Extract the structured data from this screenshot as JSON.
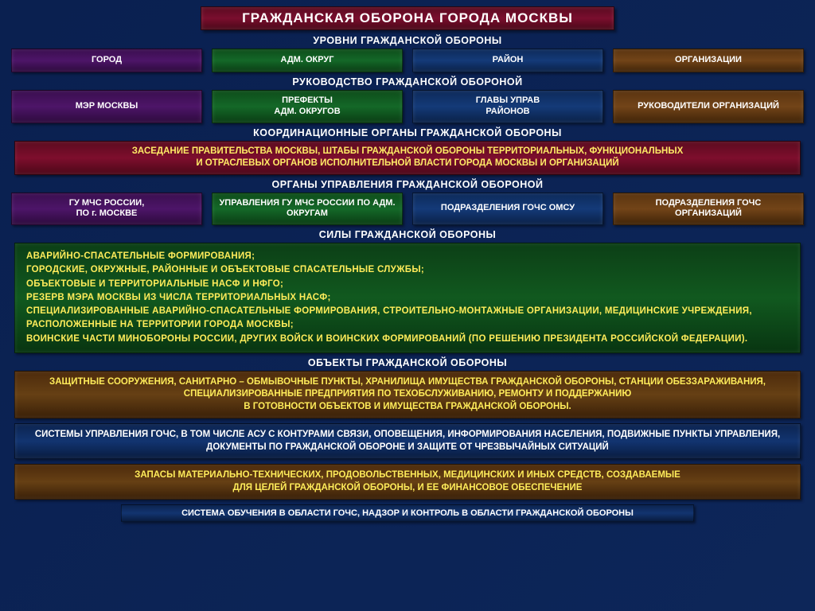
{
  "title": "ГРАЖДАНСКАЯ  ОБОРОНА  ГОРОДА  МОСКВЫ",
  "sections": {
    "levels": {
      "label": "УРОВНИ ГРАЖДАНСКОЙ ОБОРОНЫ",
      "cells": [
        "ГОРОД",
        "АДМ. ОКРУГ",
        "РАЙОН",
        "ОРГАНИЗАЦИИ"
      ]
    },
    "leadership": {
      "label": "РУКОВОДСТВО ГРАЖДАНСКОЙ ОБОРОНОЙ",
      "cells": [
        "МЭР МОСКВЫ",
        "ПРЕФЕКТЫ\nАДМ. ОКРУГОВ",
        "ГЛАВЫ УПРАВ\nРАЙОНОВ",
        "РУКОВОДИТЕЛИ ОРГАНИЗАЦИЙ"
      ]
    },
    "coord": {
      "label": "КООРДИНАЦИОННЫЕ  ОРГАНЫ  ГРАЖДАНСКОЙ  ОБОРОНЫ",
      "text": "ЗАСЕДАНИЕ ПРАВИТЕЛЬСТВА МОСКВЫ, ШТАБЫ ГРАЖДАНСКОЙ ОБОРОНЫ ТЕРРИТОРИАЛЬНЫХ, ФУНКЦИОНАЛЬНЫХ\nИ ОТРАСЛЕВЫХ ОРГАНОВ  ИСПОЛНИТЕЛЬНОЙ  ВЛАСТИ  ГОРОДА МОСКВЫ  И  ОРГАНИЗАЦИЙ"
    },
    "mgmt": {
      "label": "ОРГАНЫ УПРАВЛЕНИЯ ГРАЖДАНСКОЙ ОБОРОНОЙ",
      "cells": [
        "ГУ МЧС РОССИИ,\nПО г. МОСКВЕ",
        "УПРАВЛЕНИЯ ГУ  МЧС РОССИИ ПО АДМ. ОКРУГАМ",
        "ПОДРАЗДЕЛЕНИЯ ГОЧС ОМСУ",
        "ПОДРАЗДЕЛЕНИЯ ГОЧС\nОРГАНИЗАЦИЙ"
      ]
    },
    "forces": {
      "label": "СИЛЫ ГРАЖДАНСКОЙ ОБОРОНЫ",
      "text": "АВАРИЙНО-СПАСАТЕЛЬНЫЕ ФОРМИРОВАНИЯ;\nГОРОДСКИЕ, ОКРУЖНЫЕ, РАЙОННЫЕ И ОБЪЕКТОВЫЕ СПАСАТЕЛЬНЫЕ СЛУЖБЫ;\nОБЪЕКТОВЫЕ И ТЕРРИТОРИАЛЬНЫЕ  НАСФ И НФГО;\nРЕЗЕРВ МЭРА МОСКВЫ  ИЗ  ЧИСЛА ТЕРРИТОРИАЛЬНЫХ НАСФ;\n     СПЕЦИАЛИЗИРОВАННЫЕ  АВАРИЙНО-СПАСАТЕЛЬНЫЕ  ФОРМИРОВАНИЯ,  СТРОИТЕЛЬНО-МОНТАЖНЫЕ  ОРГАНИЗАЦИИ, МЕДИЦИНСКИЕ  УЧРЕЖДЕНИЯ,  РАСПОЛОЖЕННЫЕ  НА  ТЕРРИТОРИИ  ГОРОДА МОСКВЫ;\n     ВОИНСКИЕ  ЧАСТИ  МИНОБОРОНЫ РОССИИ,  ДРУГИХ  ВОЙСК  И  ВОИНСКИХ ФОРМИРОВАНИЙ  (ПО РЕШЕНИЮ ПРЕЗИДЕНТА РОССИЙСКОЙ ФЕДЕРАЦИИ)."
    },
    "objects": {
      "label": "ОБЪЕКТЫ ГРАЖДАНСКОЙ ОБОРОНЫ",
      "text": "ЗАЩИТНЫЕ СООРУЖЕНИЯ, САНИТАРНО – ОБМЫВОЧНЫЕ ПУНКТЫ, ХРАНИЛИЩА ИМУЩЕСТВА ГРАЖДАНСКОЙ ОБОРОНЫ, СТАНЦИИ ОБЕЗЗАРАЖИВАНИЯ, СПЕЦИАЛИЗИРОВАННЫЕ  ПРЕДПРИЯТИЯ  ПО ТЕХОБСЛУЖИВАНИЮ, РЕМОНТУ  И  ПОДДЕРЖАНИЮ\nВ ГОТОВНОСТИ ОБЪЕКТОВ И ИМУЩЕСТВА ГРАЖДАНСКОЙ ОБОРОНЫ."
    },
    "systems": {
      "text": "СИСТЕМЫ УПРАВЛЕНИЯ ГОЧС,  В ТОМ ЧИСЛЕ АСУ С КОНТУРАМИ СВЯЗИ,  ОПОВЕЩЕНИЯ,  ИНФОРМИРОВАНИЯ  НАСЕЛЕНИЯ, ПОДВИЖНЫЕ ПУНКТЫ  УПРАВЛЕНИЯ,  ДОКУМЕНТЫ  ПО ГРАЖДАНСКОЙ ОБОРОНЕ И ЗАЩИТЕ ОТ ЧРЕЗВЫЧАЙНЫХ СИТУАЦИЙ"
    },
    "reserves": {
      "text": "ЗАПАСЫ МАТЕРИАЛЬНО-ТЕХНИЧЕСКИХ, ПРОДОВОЛЬСТВЕННЫХ, МЕДИЦИНСКИХ И ИНЫХ СРЕДСТВ, СОЗДАВАЕМЫЕ\nДЛЯ ЦЕЛЕЙ ГРАЖДАНСКОЙ ОБОРОНЫ,  И  ЕЕ  ФИНАНСОВОЕ  ОБЕСПЕЧЕНИЕ"
    },
    "training": {
      "text": "СИСТЕМА ОБУЧЕНИЯ В ОБЛАСТИ ГОЧС, НАДЗОР  И КОНТРОЛЬ В ОБЛАСТИ ГРАЖДАНСКОЙ ОБОРОНЫ"
    }
  },
  "colors": {
    "col1": "#4d1568",
    "col2": "#146828",
    "col3": "#143a78",
    "col4": "#724418",
    "title_bg": "#7a0e2e",
    "wide_red": "#7e0e2d",
    "wide_green": "#11591f",
    "wide_brown": "#664014",
    "wide_navy": "#123470",
    "bg": "#0d2659",
    "yellow_text": "#ffec5a"
  }
}
